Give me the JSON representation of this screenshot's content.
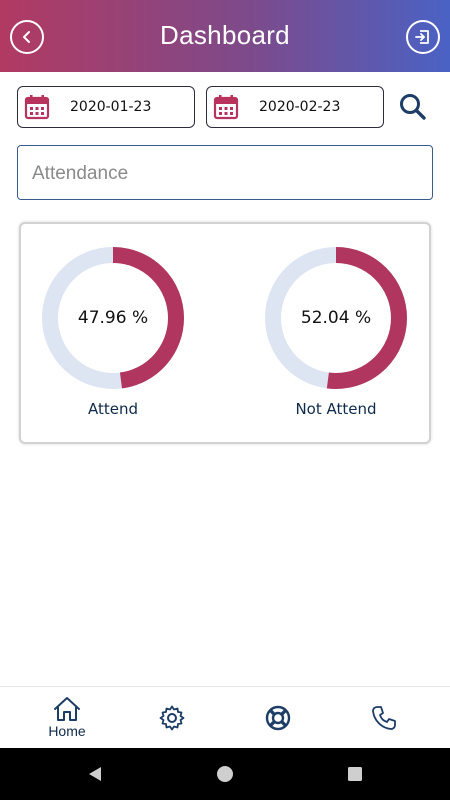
{
  "header": {
    "title": "Dashboard",
    "back_icon": "chevron-left-circle-icon",
    "logout_icon": "logout-icon",
    "gradient": [
      "#b23a62",
      "#4a62c4"
    ]
  },
  "filters": {
    "from_date": "2020-01-23",
    "to_date": "2020-02-23",
    "calendar_icon": "calendar-icon",
    "search_icon": "search-icon",
    "calendar_color": "#b8325e"
  },
  "attendance_field": {
    "placeholder": "Attendance"
  },
  "summary": {
    "items": [
      {
        "label": "Attend",
        "percent_text": "47.96 %",
        "value": 47.96
      },
      {
        "label": "Not Attend",
        "percent_text": "52.04 %",
        "value": 52.04
      }
    ],
    "arc_color": "#b0365f",
    "track_color": "#dde4f2"
  },
  "bottom_nav": {
    "items": [
      {
        "label": "Home",
        "icon": "home-icon"
      },
      {
        "label": "",
        "icon": "gear-icon"
      },
      {
        "label": "",
        "icon": "lifebuoy-icon"
      },
      {
        "label": "",
        "icon": "phone-icon"
      }
    ]
  },
  "system_nav": {
    "icons": [
      "back-triangle-icon",
      "home-circle-icon",
      "recents-square-icon"
    ]
  }
}
